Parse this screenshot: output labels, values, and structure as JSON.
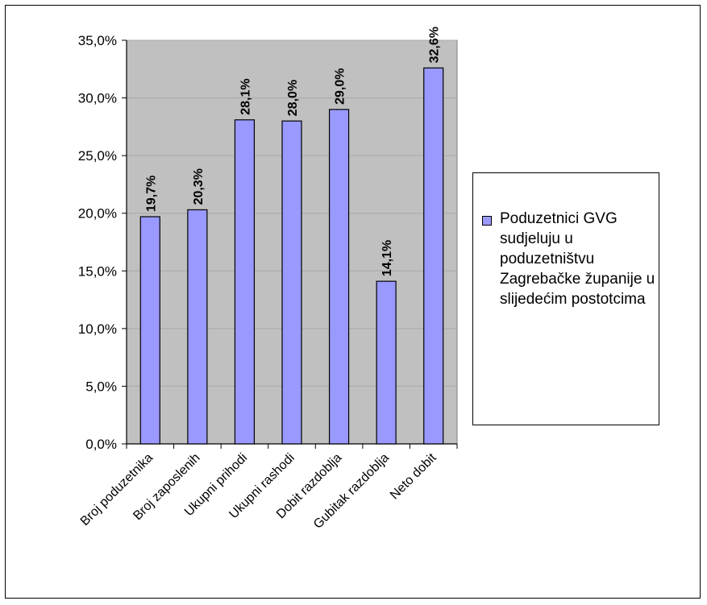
{
  "chart_data": {
    "type": "bar",
    "categories": [
      "Broj poduzetnika",
      "Broj zaposlenih",
      "Ukupni prihodi",
      "Ukupni rashodi",
      "Dobit razdoblja",
      "Gubitak razdoblja",
      "Neto dobit"
    ],
    "series": [
      {
        "name": "Poduzetnici GVG sudjeluju u poduzetništvu Zagrebačke županije u slijedećim postotcima",
        "values": [
          19.7,
          20.3,
          28.1,
          28.0,
          29.0,
          14.1,
          32.6
        ],
        "data_labels": [
          "19,7%",
          "20,3%",
          "28,1%",
          "28,0%",
          "29,0%",
          "14,1%",
          "32,6%"
        ]
      }
    ],
    "ylim": [
      0,
      35
    ],
    "y_ticks": [
      0,
      5,
      10,
      15,
      20,
      25,
      30,
      35
    ],
    "y_tick_labels": [
      "0,0%",
      "5,0%",
      "10,0%",
      "15,0%",
      "20,0%",
      "25,0%",
      "30,0%",
      "35,0%"
    ],
    "title": "",
    "xlabel": "",
    "ylabel": "",
    "grid": true,
    "legend_position": "right",
    "colors": {
      "bar": "#9999ff",
      "plot_area": "#c0c0c0",
      "gridline": "#a8a8a8",
      "border": "#000000"
    }
  }
}
